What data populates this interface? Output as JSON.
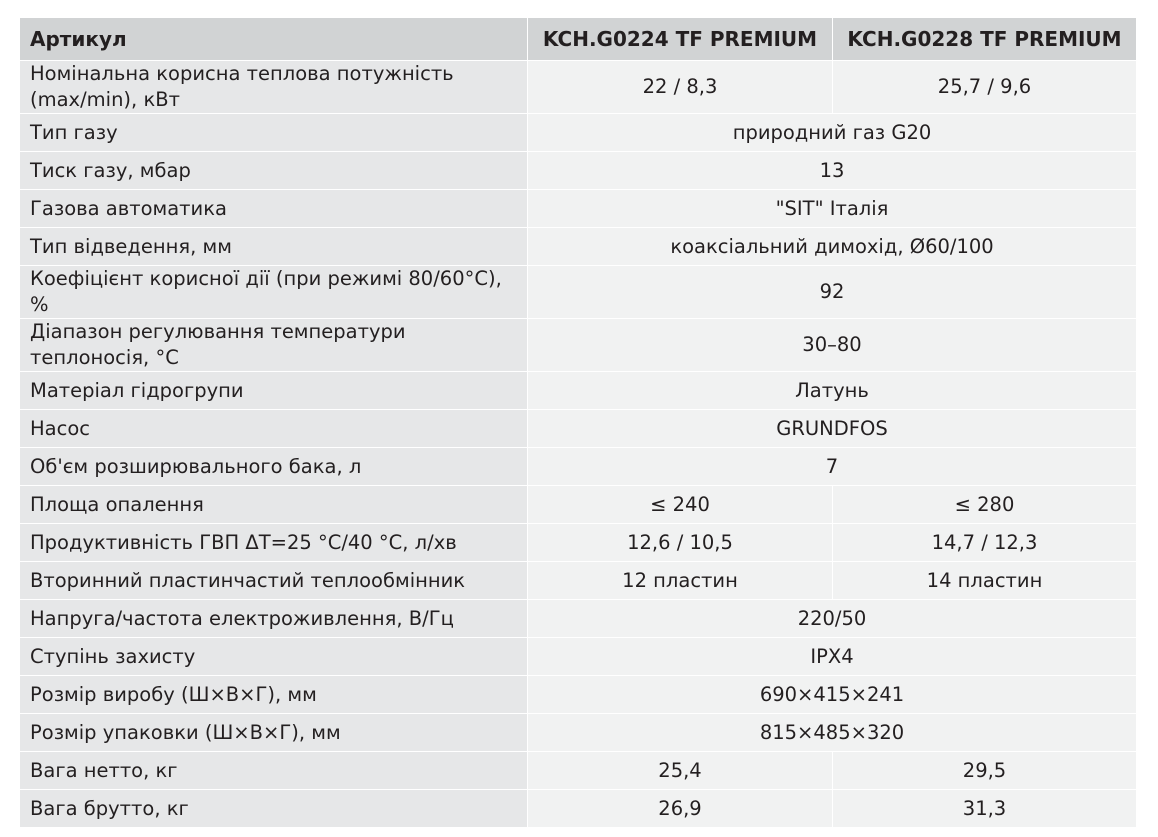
{
  "header": {
    "label": "Артикул",
    "models": [
      "KCH.G0224 TF PREMIUM",
      "KCH.G0228 TF PREMIUM"
    ]
  },
  "rows": [
    {
      "label": "Номінальна корисна теплова потужність (max/min), кВт",
      "values": [
        "22 / 8,3",
        "25,7 / 9,6"
      ],
      "tall": true
    },
    {
      "label": "Тип газу",
      "value": "природний газ G20"
    },
    {
      "label": "Тиск газу, мбар",
      "value": "13"
    },
    {
      "label": "Газова автоматика",
      "value": "\"SIT\" Італія"
    },
    {
      "label": "Тип відведення, мм",
      "value": "коаксіальний димохід, Ø60/100"
    },
    {
      "label": "Коефіцієнт корисної дії (при режимі 80/60°С), %",
      "value": "92"
    },
    {
      "label": "Діапазон регулювання температури теплоносія, °C",
      "value": "30–80",
      "tall": true
    },
    {
      "label": "Матеріал гідрогрупи",
      "value": "Латунь"
    },
    {
      "label": "Насос",
      "value": "GRUNDFOS"
    },
    {
      "label": "Об'єм розширювального бака, л",
      "value": "7"
    },
    {
      "label": "Площа опалення",
      "values": [
        "≤ 240",
        "≤ 280"
      ]
    },
    {
      "label": "Продуктивність ГВП ΔT=25 °С/40 °С, л/хв",
      "values": [
        "12,6 / 10,5",
        "14,7 / 12,3"
      ]
    },
    {
      "label": "Вторинний пластинчастий теплообмінник",
      "values": [
        "12 пластин",
        "14 пластин"
      ]
    },
    {
      "label": "Напруга/частота електроживлення, В/Гц",
      "value": "220/50"
    },
    {
      "label": "Ступінь захисту",
      "value": "IPX4"
    },
    {
      "label": "Розмір виробу (Ш×В×Г), мм",
      "value": "690×415×241"
    },
    {
      "label": "Розмір упаковки (Ш×В×Г), мм",
      "value": "815×485×320"
    },
    {
      "label": "Вага нетто, кг",
      "values": [
        "25,4",
        "29,5"
      ]
    },
    {
      "label": "Вага брутто, кг",
      "values": [
        "26,9",
        "31,3"
      ]
    }
  ]
}
